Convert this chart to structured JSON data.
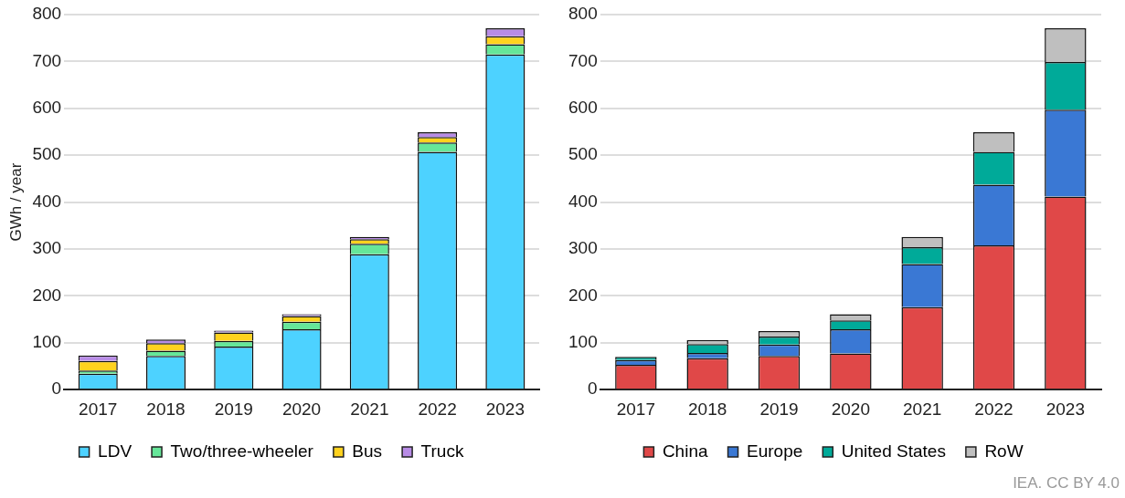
{
  "chart_data": [
    {
      "type": "bar",
      "stacked": true,
      "ylabel": "GWh / year",
      "categories": [
        "2017",
        "2018",
        "2019",
        "2020",
        "2021",
        "2022",
        "2023"
      ],
      "ylim": [
        0,
        800
      ],
      "yticks": [
        0,
        100,
        200,
        300,
        400,
        500,
        600,
        700,
        800
      ],
      "grid": "y",
      "legend": "bottom",
      "series": [
        {
          "name": "LDV",
          "color": "#4dd2ff",
          "values": [
            34,
            72,
            92,
            129,
            289,
            507,
            715
          ]
        },
        {
          "name": "Two/three-wheeler",
          "color": "#66e699",
          "values": [
            7,
            11,
            12,
            16,
            22,
            20,
            22
          ]
        },
        {
          "name": "Bus",
          "color": "#ffd21e",
          "values": [
            20,
            16,
            18,
            12,
            10,
            12,
            17
          ]
        },
        {
          "name": "Truck",
          "color": "#b88ce6",
          "values": [
            12,
            8,
            4,
            4,
            5,
            10,
            17
          ]
        }
      ]
    },
    {
      "type": "bar",
      "stacked": true,
      "categories": [
        "2017",
        "2018",
        "2019",
        "2020",
        "2021",
        "2022",
        "2023"
      ],
      "ylim": [
        0,
        800
      ],
      "yticks": [
        0,
        100,
        200,
        300,
        400,
        500,
        600,
        700,
        800
      ],
      "grid": "y",
      "legend": "bottom",
      "annotations": [
        "IEA. CC BY 4.0"
      ],
      "series": [
        {
          "name": "China",
          "color": "#e04848",
          "values": [
            53,
            67,
            72,
            77,
            176,
            308,
            412
          ]
        },
        {
          "name": "Europe",
          "color": "#3a78d4",
          "values": [
            10,
            11,
            24,
            52,
            92,
            129,
            185
          ]
        },
        {
          "name": "United States",
          "color": "#00aa99",
          "values": [
            7,
            19,
            17,
            19,
            36,
            70,
            102
          ]
        },
        {
          "name": "RoW",
          "color": "#bfbfbf",
          "values": [
            null,
            9,
            12,
            13,
            22,
            42,
            72
          ]
        }
      ]
    }
  ]
}
